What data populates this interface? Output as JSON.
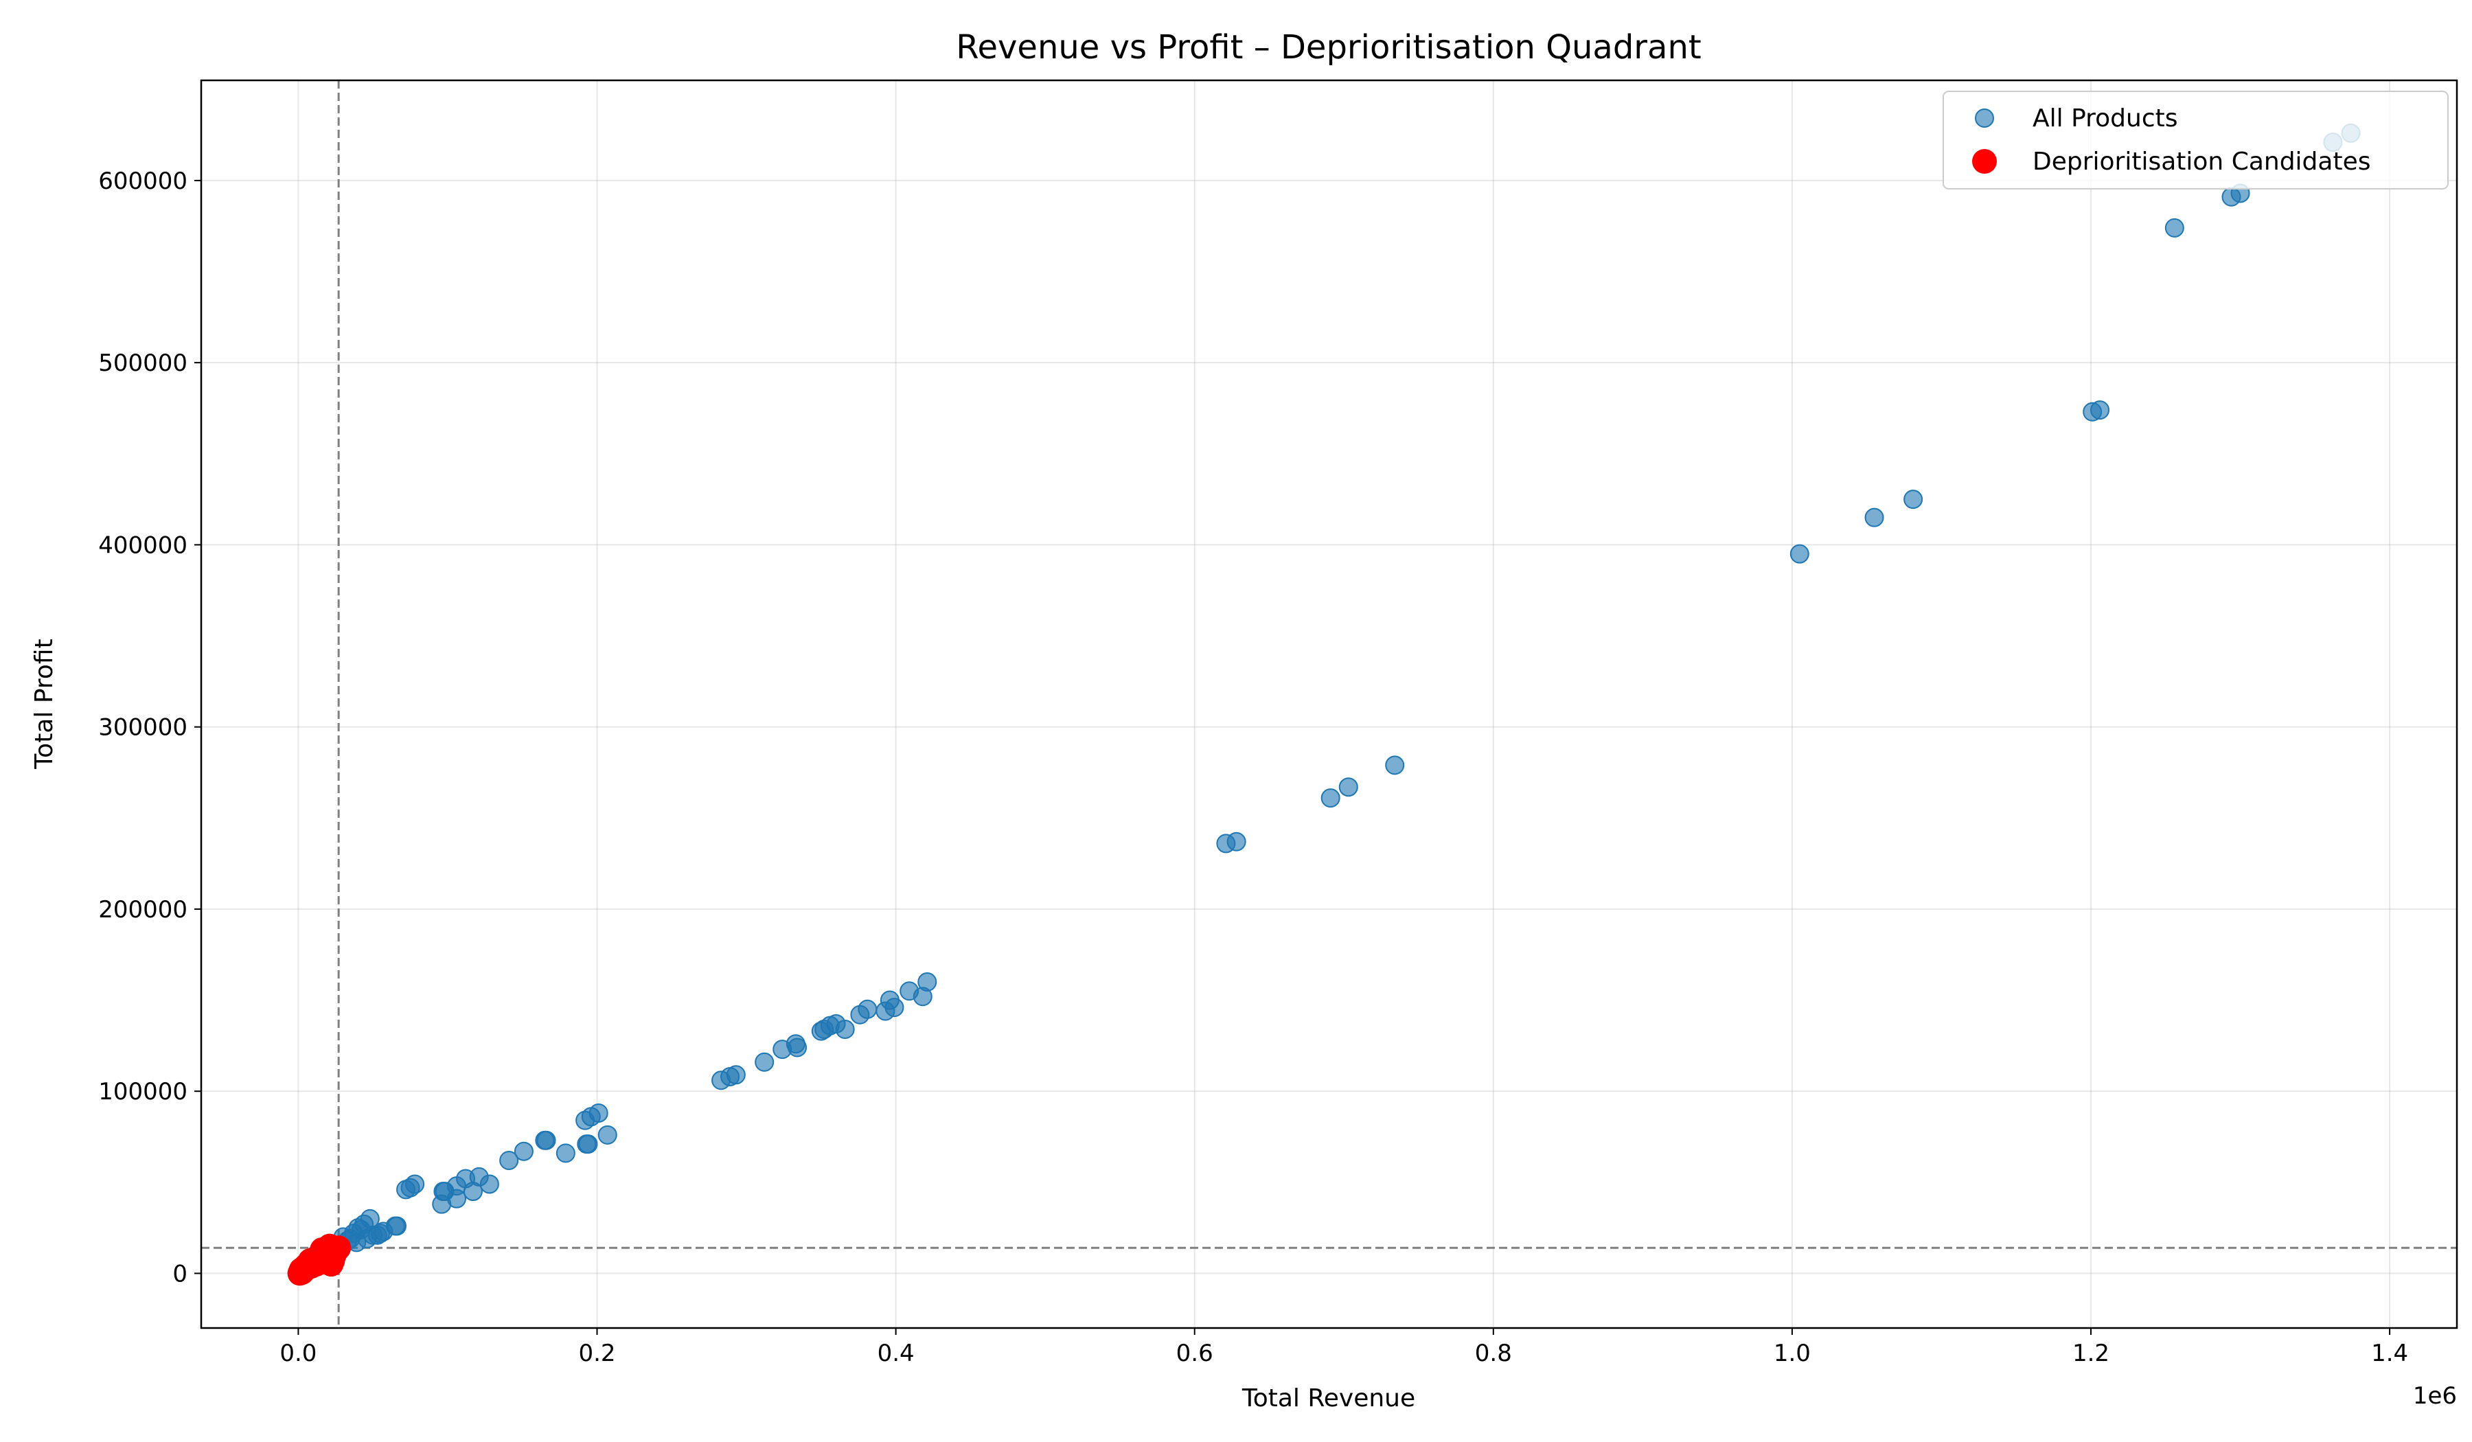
{
  "chart_data": {
    "type": "scatter",
    "title": "Revenue vs Profit – Deprioritisation Quadrant",
    "xlabel": "Total Revenue",
    "ylabel": "Total Profit",
    "x_offset_label": "1e6",
    "xlim": [
      -65000,
      1445000
    ],
    "ylim": [
      -30000,
      655000
    ],
    "x_ticks": [
      0,
      200000,
      400000,
      600000,
      800000,
      1000000,
      1200000,
      1400000
    ],
    "x_tick_labels": [
      "0.0",
      "0.2",
      "0.4",
      "0.6",
      "0.8",
      "1.0",
      "1.2",
      "1.4"
    ],
    "y_ticks": [
      0,
      100000,
      200000,
      300000,
      400000,
      500000,
      600000
    ],
    "y_tick_labels": [
      "0",
      "100000",
      "200000",
      "300000",
      "400000",
      "500000",
      "600000"
    ],
    "grid": true,
    "legend": "top-right",
    "threshold_lines": {
      "x": 27000,
      "y": 14000
    },
    "colors": {
      "all": "#1f77b4",
      "candidates": "#ff0000",
      "threshold": "#808080"
    },
    "series": [
      {
        "name": "All Products",
        "points": [
          [
            1374000,
            626000
          ],
          [
            1362000,
            621000
          ],
          [
            1300000,
            593000
          ],
          [
            1294000,
            591000
          ],
          [
            1256000,
            574000
          ],
          [
            1206000,
            474000
          ],
          [
            1201000,
            473000
          ],
          [
            1081000,
            425000
          ],
          [
            1055000,
            415000
          ],
          [
            1005000,
            395000
          ],
          [
            734000,
            279000
          ],
          [
            703000,
            267000
          ],
          [
            691000,
            261000
          ],
          [
            628000,
            237000
          ],
          [
            621000,
            236000
          ],
          [
            421000,
            160000
          ],
          [
            418000,
            152000
          ],
          [
            409000,
            155000
          ],
          [
            399000,
            146000
          ],
          [
            396000,
            150000
          ],
          [
            393000,
            144000
          ],
          [
            381000,
            145000
          ],
          [
            376000,
            142000
          ],
          [
            366000,
            134000
          ],
          [
            360000,
            137000
          ],
          [
            356000,
            136000
          ],
          [
            352000,
            134000
          ],
          [
            350000,
            133000
          ],
          [
            334000,
            124000
          ],
          [
            333000,
            126000
          ],
          [
            324000,
            123000
          ],
          [
            312000,
            116000
          ],
          [
            293000,
            109000
          ],
          [
            289000,
            108000
          ],
          [
            283000,
            106000
          ],
          [
            207000,
            76000
          ],
          [
            201000,
            88000
          ],
          [
            196000,
            86000
          ],
          [
            194000,
            71000
          ],
          [
            192000,
            84000
          ],
          [
            193000,
            71000
          ],
          [
            179000,
            66000
          ],
          [
            166000,
            73000
          ],
          [
            165000,
            73000
          ],
          [
            151000,
            67000
          ],
          [
            141000,
            62000
          ],
          [
            128000,
            49000
          ],
          [
            121000,
            53000
          ],
          [
            117000,
            45000
          ],
          [
            112000,
            52000
          ],
          [
            106000,
            48000
          ],
          [
            106000,
            41000
          ],
          [
            98000,
            45000
          ],
          [
            97000,
            45000
          ],
          [
            96000,
            38000
          ],
          [
            78000,
            49000
          ],
          [
            75000,
            47000
          ],
          [
            72000,
            46000
          ],
          [
            66000,
            26000
          ],
          [
            65000,
            26000
          ],
          [
            57000,
            23000
          ],
          [
            55000,
            22000
          ],
          [
            53000,
            21000
          ],
          [
            50000,
            21000
          ],
          [
            48000,
            30000
          ],
          [
            46000,
            19000
          ],
          [
            44000,
            27000
          ],
          [
            42000,
            24000
          ],
          [
            40000,
            25000
          ],
          [
            39000,
            17000
          ],
          [
            37000,
            22000
          ],
          [
            35000,
            19000
          ],
          [
            33000,
            18000
          ],
          [
            30000,
            20000
          ],
          [
            28000,
            15000
          ],
          [
            24000,
            14000
          ],
          [
            20000,
            13000
          ],
          [
            15000,
            10000
          ],
          [
            10000,
            7000
          ],
          [
            5000,
            4000
          ]
        ]
      },
      {
        "name": "Deprioritisation Candidates",
        "points": [
          [
            27000,
            14000
          ],
          [
            26000,
            13000
          ],
          [
            25000,
            12000
          ],
          [
            24000,
            10000
          ],
          [
            23000,
            7000
          ],
          [
            22000,
            5000
          ],
          [
            21000,
            15000
          ],
          [
            20000,
            12000
          ],
          [
            19000,
            9000
          ],
          [
            19000,
            6000
          ],
          [
            18000,
            11000
          ],
          [
            17000,
            8000
          ],
          [
            16000,
            13000
          ],
          [
            15000,
            10000
          ],
          [
            14000,
            7000
          ],
          [
            13000,
            9000
          ],
          [
            12000,
            5000
          ],
          [
            11000,
            8000
          ],
          [
            10000,
            6000
          ],
          [
            9000,
            4000
          ],
          [
            8000,
            7000
          ],
          [
            7000,
            5000
          ],
          [
            6000,
            3000
          ],
          [
            5000,
            4000
          ],
          [
            4000,
            2000
          ],
          [
            3000,
            1000
          ],
          [
            2500,
            500
          ],
          [
            2000,
            2000
          ],
          [
            1500,
            1000
          ],
          [
            1000,
            0
          ]
        ]
      }
    ]
  }
}
